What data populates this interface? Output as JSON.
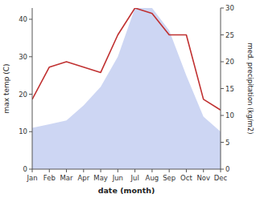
{
  "chart_data": {
    "type": "line",
    "categories": [
      "Jan",
      "Feb",
      "Mar",
      "Apr",
      "May",
      "Jun",
      "Jul",
      "Aug",
      "Sep",
      "Oct",
      "Nov",
      "Dec"
    ],
    "series": [
      {
        "type": "area",
        "color": "#b8c4ee",
        "values": [
          11,
          12,
          13,
          17,
          22,
          30,
          43,
          43,
          37,
          25,
          14,
          10
        ]
      },
      {
        "type": "line",
        "axis": "y2",
        "color": "#c03030",
        "values": [
          13,
          19,
          20,
          19,
          18,
          25,
          30,
          29,
          25,
          25,
          13,
          11
        ]
      }
    ],
    "xlabel": "date (month)",
    "ylabel": "max temp (C)",
    "y2label": "med. precipitation (kg/m2)",
    "ylim": [
      0,
      43
    ],
    "yticks": [
      0,
      10,
      20,
      30,
      40
    ],
    "y2lim": [
      0,
      30
    ],
    "y2ticks": [
      0,
      5,
      10,
      15,
      20,
      25,
      30
    ],
    "grid": false
  }
}
